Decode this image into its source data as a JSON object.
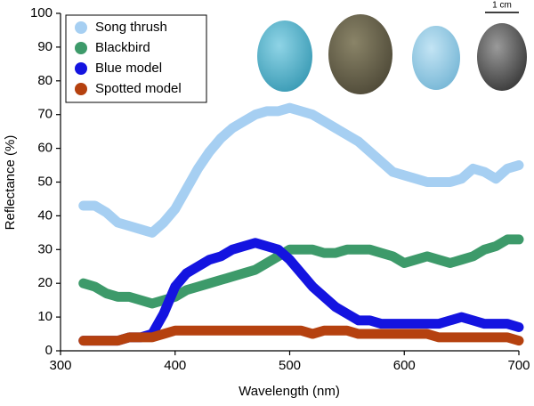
{
  "chart_data": {
    "type": "line",
    "x_label": "Wavelength (nm)",
    "y_label": "Reflectance (%)",
    "scale_label": "1 cm",
    "x": [
      320,
      330,
      340,
      350,
      360,
      370,
      380,
      390,
      400,
      410,
      420,
      430,
      440,
      450,
      460,
      470,
      480,
      490,
      500,
      510,
      520,
      530,
      540,
      550,
      560,
      570,
      580,
      590,
      600,
      610,
      620,
      630,
      640,
      650,
      660,
      670,
      680,
      690,
      700
    ],
    "series": [
      {
        "name": "Song thrush",
        "color": "#a6cff2",
        "values": [
          43,
          43,
          41,
          38,
          37,
          36,
          35,
          38,
          42,
          48,
          54,
          59,
          63,
          66,
          68,
          70,
          71,
          71,
          72,
          71,
          70,
          68,
          66,
          64,
          62,
          59,
          56,
          53,
          52,
          51,
          50,
          50,
          50,
          51,
          54,
          53,
          51,
          54,
          55
        ]
      },
      {
        "name": "Blackbird",
        "color": "#3d9a6a",
        "values": [
          20,
          19,
          17,
          16,
          16,
          15,
          14,
          15,
          16,
          18,
          19,
          20,
          21,
          22,
          23,
          24,
          26,
          28,
          30,
          30,
          30,
          29,
          29,
          30,
          30,
          30,
          29,
          28,
          26,
          27,
          28,
          27,
          26,
          27,
          28,
          30,
          31,
          33,
          33
        ]
      },
      {
        "name": "Blue model",
        "color": "#1414e0",
        "values": [
          3,
          3,
          3,
          3,
          4,
          4,
          5,
          11,
          19,
          23,
          25,
          27,
          28,
          30,
          31,
          32,
          31,
          30,
          27,
          23,
          19,
          16,
          13,
          11,
          9,
          9,
          8,
          8,
          8,
          8,
          8,
          8,
          9,
          10,
          9,
          8,
          8,
          8,
          7
        ]
      },
      {
        "name": "Spotted model",
        "color": "#b5410f",
        "values": [
          3,
          3,
          3,
          3,
          4,
          4,
          4,
          5,
          6,
          6,
          6,
          6,
          6,
          6,
          6,
          6,
          6,
          6,
          6,
          6,
          5,
          6,
          6,
          6,
          5,
          5,
          5,
          5,
          5,
          5,
          5,
          4,
          4,
          4,
          4,
          4,
          4,
          4,
          3
        ]
      }
    ],
    "xlim": [
      300,
      700
    ],
    "xticks": [
      300,
      400,
      500,
      600,
      700
    ],
    "ylim": [
      0,
      100
    ],
    "yticks": [
      0,
      10,
      20,
      30,
      40,
      50,
      60,
      70,
      80,
      90,
      100
    ],
    "grid": false,
    "legend_position": "upper-left"
  }
}
